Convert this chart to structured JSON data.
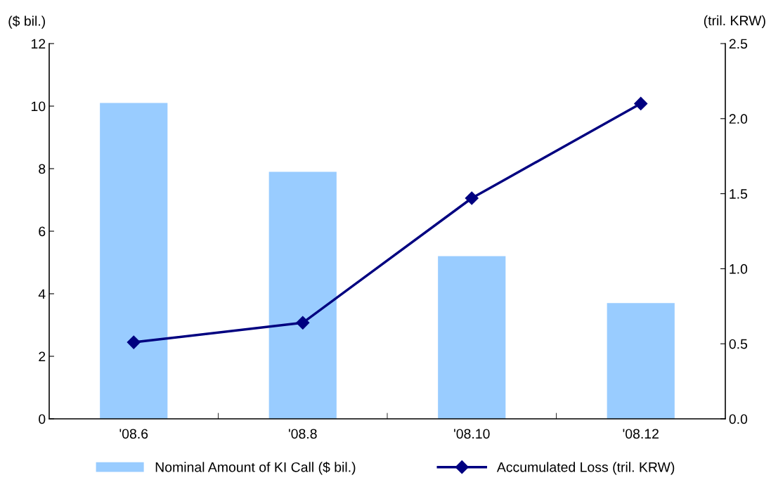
{
  "chart_data": {
    "type": "bar",
    "categories": [
      "'08.6",
      "'08.8",
      "'08.10",
      "'08.12"
    ],
    "series": [
      {
        "name": "Nominal Amount of KI Call ($ bil.)",
        "color": "#99ccff",
        "values": [
          10.1,
          7.9,
          5.2,
          3.7
        ]
      },
      {
        "name": "Accumulated Loss (tril. KRW)",
        "type": "line",
        "axis": "y2",
        "color": "#000080",
        "values": [
          0.51,
          0.64,
          1.47,
          2.1
        ],
        "marker": "diamond"
      }
    ],
    "ylabel": "($ bil.)",
    "y2label": "(tril. KRW)",
    "ylim": [
      0,
      12
    ],
    "yticks": [
      0,
      2,
      4,
      6,
      8,
      10,
      12
    ],
    "y2lim": [
      0,
      2.5
    ],
    "y2ticks": [
      {
        "value": 0,
        "label": "0.0"
      },
      {
        "value": 0.5,
        "label": "0.5"
      },
      {
        "value": 1,
        "label": "1.0"
      },
      {
        "value": 1.5,
        "label": "1.5"
      },
      {
        "value": 2,
        "label": "2.0"
      },
      {
        "value": 2.5,
        "label": "2.5"
      }
    ],
    "legend": "bottom",
    "grid": false
  }
}
